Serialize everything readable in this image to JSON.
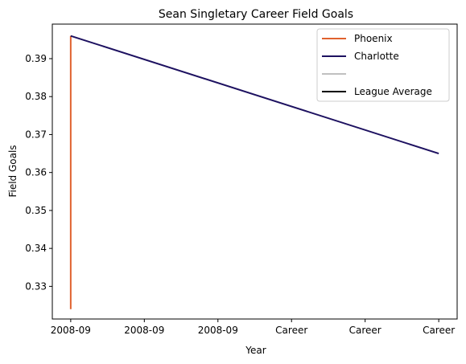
{
  "chart_data": {
    "type": "line",
    "title": "Sean Singletary Career Field Goals",
    "xlabel": "Year",
    "ylabel": "Field Goals",
    "x_tick_labels": [
      "2008-09",
      "2008-09",
      "2008-09",
      "Career",
      "Career",
      "Career"
    ],
    "y_ticks": [
      0.33,
      0.34,
      0.35,
      0.36,
      0.37,
      0.38,
      0.39
    ],
    "y_tick_labels": [
      "0.33",
      "0.34",
      "0.35",
      "0.36",
      "0.37",
      "0.38",
      "0.39"
    ],
    "xlim": [
      -0.25,
      5.25
    ],
    "ylim": [
      0.3214,
      0.3991
    ],
    "grid": false,
    "legend_position": "top-right",
    "series": [
      {
        "name": "Phoenix",
        "color": "#e0622e",
        "points": [
          [
            0,
            0.324
          ],
          [
            0,
            0.396
          ]
        ]
      },
      {
        "name": "Charlotte",
        "color": "#1d1160",
        "points": [
          [
            0,
            0.396
          ],
          [
            5,
            0.365
          ]
        ]
      }
    ],
    "legend": [
      {
        "label": "Phoenix",
        "color": "#e0622e"
      },
      {
        "label": "Charlotte",
        "color": "#1d1160"
      },
      {
        "label": "",
        "color": "#c0c0c0"
      },
      {
        "label": "League Average",
        "color": "#000000"
      }
    ]
  }
}
